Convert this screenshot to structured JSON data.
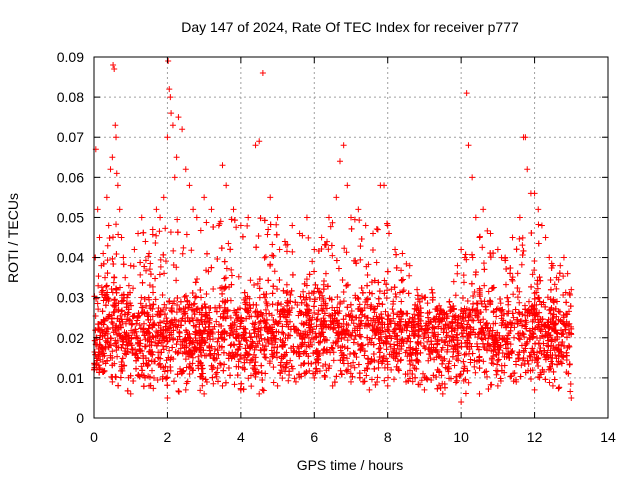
{
  "chart_data": {
    "type": "scatter",
    "title": "Day 147 of 2024, Rate Of TEC Index for receiver p777",
    "xlabel": "GPS time / hours",
    "ylabel": "ROTI / TECUs",
    "xlim": [
      0,
      14
    ],
    "ylim": [
      0,
      0.09
    ],
    "x_ticks": [
      0,
      2,
      4,
      6,
      8,
      10,
      12,
      14
    ],
    "x_tick_labels": [
      "0",
      "2",
      "4",
      "6",
      "8",
      "10",
      "12",
      "14"
    ],
    "y_ticks": [
      0,
      0.01,
      0.02,
      0.03,
      0.04,
      0.05,
      0.06,
      0.07,
      0.08,
      0.09
    ],
    "y_tick_labels": [
      "0",
      "0.01",
      "0.02",
      "0.03",
      "0.04",
      "0.05",
      "0.06",
      "0.07",
      "0.08",
      "0.09"
    ],
    "grid": true,
    "marker": "+",
    "data_coverage_hours": [
      0,
      13
    ],
    "series": [
      {
        "name": "ROTI",
        "color": "#ff0000",
        "x": [
          0.05,
          0.1,
          0.15,
          0.2,
          0.25,
          0.3,
          0.35,
          0.4,
          0.45,
          0.5,
          0.52,
          0.55,
          0.58,
          0.6,
          0.62,
          0.65,
          0.7,
          0.75,
          0.8,
          0.85,
          0.9,
          0.95,
          1.0,
          1.1,
          1.2,
          1.3,
          1.4,
          1.5,
          1.6,
          1.7,
          1.8,
          1.9,
          2.0,
          2.02,
          2.05,
          2.08,
          2.1,
          2.15,
          2.2,
          2.25,
          2.3,
          2.4,
          2.5,
          2.6,
          2.7,
          2.8,
          3.0,
          3.2,
          3.4,
          3.5,
          3.6,
          3.8,
          4.0,
          4.2,
          4.4,
          4.5,
          4.6,
          4.8,
          5.0,
          5.2,
          5.4,
          5.6,
          5.8,
          6.0,
          6.2,
          6.4,
          6.6,
          6.7,
          6.8,
          6.9,
          7.0,
          7.2,
          7.4,
          7.6,
          7.8,
          7.9,
          8.0,
          8.2,
          8.4,
          8.6,
          8.8,
          9.0,
          9.2,
          9.4,
          9.6,
          9.8,
          9.9,
          10.0,
          10.1,
          10.15,
          10.2,
          10.3,
          10.4,
          10.5,
          10.6,
          10.8,
          11.0,
          11.2,
          11.4,
          11.6,
          11.7,
          11.75,
          11.8,
          11.9,
          12.0,
          12.1,
          12.2,
          12.3,
          12.4,
          12.5,
          12.6,
          12.7,
          12.8,
          12.9,
          13.0
        ],
        "y": [
          0.067,
          0.052,
          0.045,
          0.038,
          0.041,
          0.035,
          0.055,
          0.048,
          0.062,
          0.065,
          0.088,
          0.087,
          0.073,
          0.07,
          0.061,
          0.058,
          0.052,
          0.045,
          0.04,
          0.035,
          0.03,
          0.033,
          0.038,
          0.042,
          0.046,
          0.05,
          0.044,
          0.041,
          0.047,
          0.052,
          0.05,
          0.055,
          0.07,
          0.089,
          0.082,
          0.08,
          0.076,
          0.073,
          0.06,
          0.065,
          0.075,
          0.072,
          0.062,
          0.058,
          0.052,
          0.05,
          0.055,
          0.052,
          0.048,
          0.063,
          0.058,
          0.052,
          0.048,
          0.05,
          0.068,
          0.069,
          0.086,
          0.055,
          0.05,
          0.044,
          0.048,
          0.046,
          0.05,
          0.042,
          0.045,
          0.05,
          0.055,
          0.064,
          0.068,
          0.058,
          0.05,
          0.052,
          0.048,
          0.046,
          0.058,
          0.058,
          0.048,
          0.042,
          0.041,
          0.038,
          0.032,
          0.03,
          0.032,
          0.028,
          0.026,
          0.034,
          0.038,
          0.042,
          0.04,
          0.081,
          0.068,
          0.06,
          0.05,
          0.045,
          0.052,
          0.046,
          0.042,
          0.04,
          0.045,
          0.05,
          0.07,
          0.07,
          0.062,
          0.056,
          0.056,
          0.052,
          0.048,
          0.045,
          0.04,
          0.038,
          0.035,
          0.038,
          0.04,
          0.036,
          0.032
        ],
        "envelope_low_x": [
          0.0,
          0.5,
          1.0,
          1.5,
          2.0,
          2.5,
          3.0,
          3.5,
          4.0,
          4.5,
          5.0,
          5.5,
          6.0,
          6.5,
          7.0,
          7.5,
          8.0,
          8.5,
          9.0,
          9.5,
          10.0,
          10.5,
          11.0,
          11.5,
          12.0,
          12.5,
          13.0
        ],
        "envelope_low_y": [
          0.012,
          0.009,
          0.006,
          0.008,
          0.005,
          0.007,
          0.006,
          0.008,
          0.007,
          0.006,
          0.008,
          0.009,
          0.01,
          0.008,
          0.009,
          0.007,
          0.008,
          0.009,
          0.007,
          0.006,
          0.004,
          0.006,
          0.008,
          0.009,
          0.007,
          0.008,
          0.005
        ]
      }
    ]
  }
}
